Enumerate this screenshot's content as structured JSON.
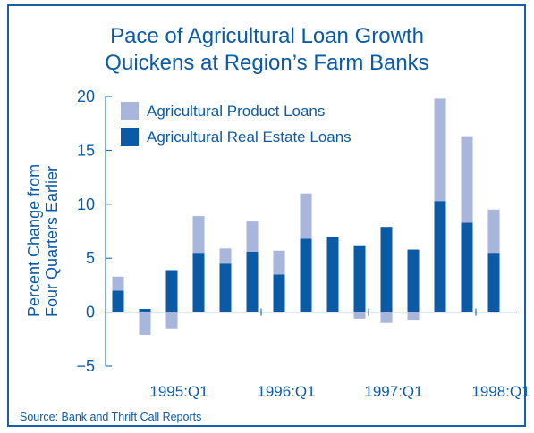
{
  "chart_data": {
    "type": "bar",
    "title": [
      "Pace of Agricultural Loan Growth",
      "Quickens at Region’s Farm Banks"
    ],
    "ylabel": [
      "Percent Change from",
      "Four Quarters Earlier"
    ],
    "ylim": [
      -5,
      20
    ],
    "yticks": [
      "20",
      "15",
      "10",
      "5",
      "0",
      "−5"
    ],
    "ytick_values": [
      20,
      15,
      10,
      5,
      0,
      -5
    ],
    "x_tick_labels": [
      "1995:Q1",
      "1996:Q1",
      "1997:Q1",
      "1998:Q1"
    ],
    "x_tick_label_indices": [
      2,
      6,
      10,
      14
    ],
    "stacked": true,
    "categories": [
      "1994:Q3",
      "1994:Q4",
      "1995:Q1",
      "1995:Q2",
      "1995:Q3",
      "1995:Q4",
      "1996:Q1",
      "1996:Q2",
      "1996:Q3",
      "1996:Q4",
      "1997:Q1",
      "1997:Q2",
      "1997:Q3",
      "1997:Q4",
      "1998:Q1",
      "1998:Q2",
      "1998:Q3"
    ],
    "series": [
      {
        "name": "Agricultural Product Loans",
        "color": "#a8b6dc",
        "values": [
          1.3,
          -2.1,
          -1.5,
          3.4,
          1.4,
          2.8,
          2.2,
          4.2,
          0,
          -0.6,
          -1.0,
          -0.7,
          9.5,
          8.0,
          4.0,
          0,
          0
        ]
      },
      {
        "name": "Agricultural Real Estate Loans",
        "color": "#0b5aa6",
        "values": [
          2.0,
          0.3,
          3.9,
          5.5,
          4.5,
          5.6,
          3.5,
          6.8,
          7.0,
          6.2,
          7.9,
          5.8,
          10.3,
          8.3,
          5.5,
          0,
          0
        ]
      }
    ],
    "legend_position": "top-left",
    "grid": false
  },
  "source": "Source: Bank and Thrift Call Reports"
}
